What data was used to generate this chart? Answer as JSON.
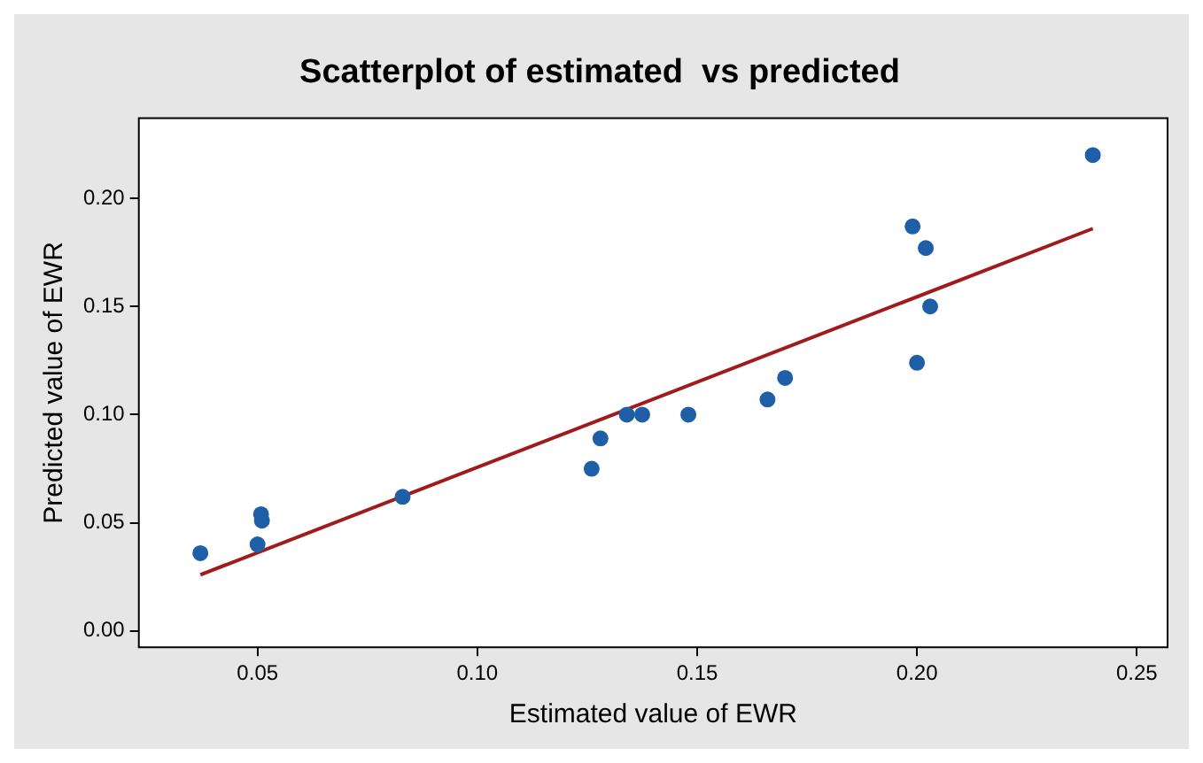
{
  "chart_data": {
    "type": "scatter",
    "title": "Scatterplot of estimated  vs predicted",
    "xlabel": "Estimated value of EWR",
    "ylabel": "Predicted value of EWR",
    "series": [
      {
        "type": "scatter",
        "marker": "circle",
        "color": "#1f5fa8",
        "x": [
          0.037,
          0.0508,
          0.051,
          0.05,
          0.083,
          0.126,
          0.128,
          0.134,
          0.1375,
          0.148,
          0.166,
          0.17,
          0.199,
          0.202,
          0.203,
          0.2,
          0.24
        ],
        "values": [
          0.036,
          0.054,
          0.051,
          0.04,
          0.062,
          0.075,
          0.089,
          0.1,
          0.1,
          0.1,
          0.107,
          0.117,
          0.187,
          0.177,
          0.15,
          0.124,
          0.22
        ]
      },
      {
        "type": "line",
        "color": "#a01c1c",
        "x": [
          0.037,
          0.24
        ],
        "values": [
          0.026,
          0.186
        ]
      }
    ],
    "xlim": [
      0.023,
      0.257
    ],
    "ylim": [
      -0.0075,
      0.237
    ],
    "xticks": [
      {
        "value": 0.05,
        "label": "0.05"
      },
      {
        "value": 0.1,
        "label": "0.10"
      },
      {
        "value": 0.15,
        "label": "0.15"
      },
      {
        "value": 0.2,
        "label": "0.20"
      },
      {
        "value": 0.25,
        "label": "0.25"
      }
    ],
    "yticks": [
      {
        "value": 0,
        "label": "0.00"
      },
      {
        "value": 0.05,
        "label": "0.05"
      },
      {
        "value": 0.1,
        "label": "0.10"
      },
      {
        "value": 0.15,
        "label": "0.15"
      },
      {
        "value": 0.2,
        "label": "0.20"
      }
    ],
    "grid": false,
    "legend": false
  }
}
